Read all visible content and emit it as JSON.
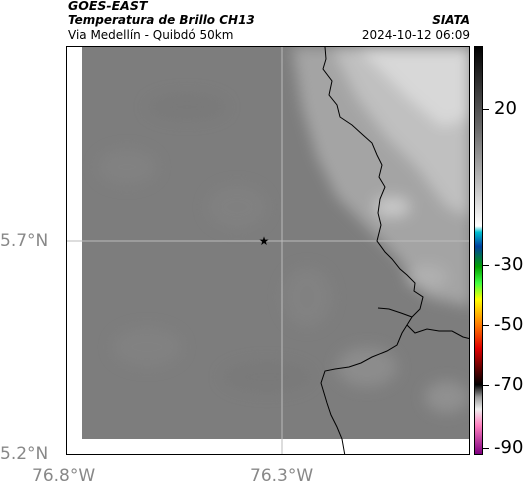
{
  "header": {
    "satellite": "GOES-EAST",
    "product": "Temperatura de Brillo CH13",
    "agency": "SIATA",
    "route": "Via Medellín - Quibdó 50km",
    "datetime": "2024-10-12 06:09"
  },
  "map": {
    "latitude_labels": [
      "5.7°N",
      "5.2°N"
    ],
    "longitude_labels": [
      "76.8°W",
      "76.3°W"
    ],
    "marker_icon": "star-icon",
    "boundary_color": "#000000",
    "gridline_color": "#bbbbbb"
  },
  "colorbar": {
    "tick_labels": [
      "20",
      "-30",
      "-50",
      "-70",
      "-90"
    ]
  }
}
